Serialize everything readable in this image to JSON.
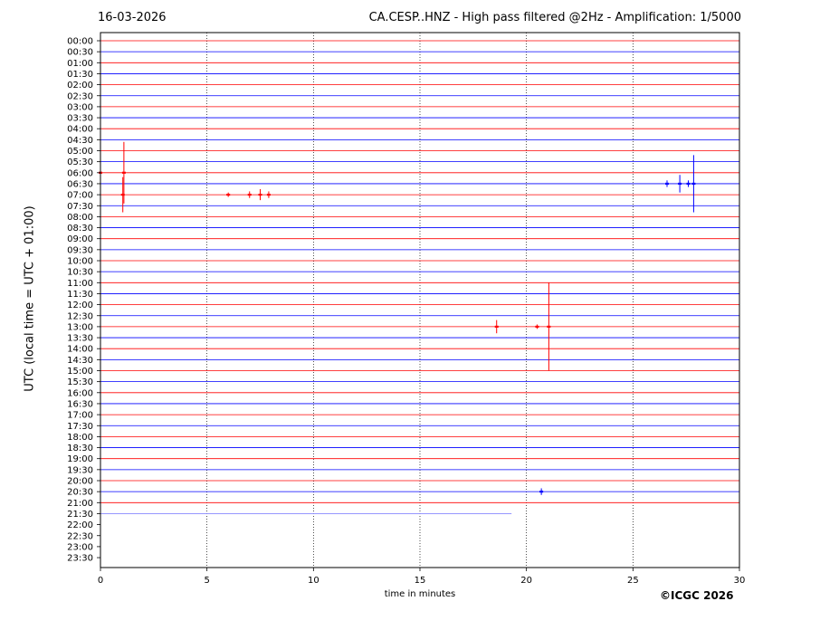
{
  "header": {
    "date": "16-03-2026",
    "title": "CA.CESP..HNZ - High pass filtered @2Hz - Amplification: 1/5000"
  },
  "footer": {
    "copyright": "©ICGC 2026"
  },
  "colors": {
    "red": "#ff0000",
    "blue": "#0000ff",
    "light_blue": "#8888ff",
    "frame": "#000000"
  },
  "chart_data": {
    "type": "line",
    "title": "CA.CESP..HNZ - High pass filtered @2Hz - Amplification: 1/5000",
    "xlabel": "time in minutes",
    "ylabel": "UTC (local time = UTC + 01:00)",
    "xlim": [
      0,
      30
    ],
    "xticks": [
      "0",
      "5",
      "10",
      "15",
      "20",
      "25",
      "30"
    ],
    "vertical_grid_minutes": [
      5,
      10,
      15,
      20,
      25
    ],
    "grid": "dotted vertical",
    "rows": [
      "00:00",
      "00:30",
      "01:00",
      "01:30",
      "02:00",
      "02:30",
      "03:00",
      "03:30",
      "04:00",
      "04:30",
      "05:00",
      "05:30",
      "06:00",
      "06:30",
      "07:00",
      "07:30",
      "08:00",
      "08:30",
      "09:00",
      "09:30",
      "10:00",
      "10:30",
      "11:00",
      "11:30",
      "12:00",
      "12:30",
      "13:00",
      "13:30",
      "14:00",
      "14:30",
      "15:00",
      "15:30",
      "16:00",
      "16:30",
      "17:00",
      "17:30",
      "18:00",
      "18:30",
      "19:00",
      "19:30",
      "20:00",
      "20:30",
      "21:00",
      "21:30",
      "22:00",
      "22:30",
      "23:00",
      "23:30"
    ],
    "trace_color_pattern": [
      "red",
      "blue"
    ],
    "last_trace": {
      "row": "21:30",
      "end_minute": 19.3,
      "color": "light_blue"
    },
    "events": [
      {
        "row": "06:00",
        "minute": 0.0,
        "amplitude": 0.5
      },
      {
        "row": "06:00",
        "minute": 1.1,
        "amplitude": 2.8
      },
      {
        "row": "07:00",
        "minute": 1.05,
        "amplitude": 1.6
      },
      {
        "row": "07:00",
        "minute": 6.0,
        "amplitude": 0.2
      },
      {
        "row": "07:00",
        "minute": 7.0,
        "amplitude": 0.3
      },
      {
        "row": "07:00",
        "minute": 7.5,
        "amplitude": 0.5
      },
      {
        "row": "07:00",
        "minute": 7.9,
        "amplitude": 0.3
      },
      {
        "row": "06:30",
        "minute": 26.6,
        "amplitude": 0.3
      },
      {
        "row": "06:30",
        "minute": 27.2,
        "amplitude": 0.8
      },
      {
        "row": "06:30",
        "minute": 27.6,
        "amplitude": 0.3
      },
      {
        "row": "06:30",
        "minute": 27.85,
        "amplitude": 2.6
      },
      {
        "row": "13:00",
        "minute": 18.6,
        "amplitude": 0.6
      },
      {
        "row": "13:00",
        "minute": 20.5,
        "amplitude": 0.2
      },
      {
        "row": "13:00",
        "minute": 21.05,
        "amplitude": 4.0
      },
      {
        "row": "20:30",
        "minute": 20.7,
        "amplitude": 0.3
      }
    ]
  }
}
